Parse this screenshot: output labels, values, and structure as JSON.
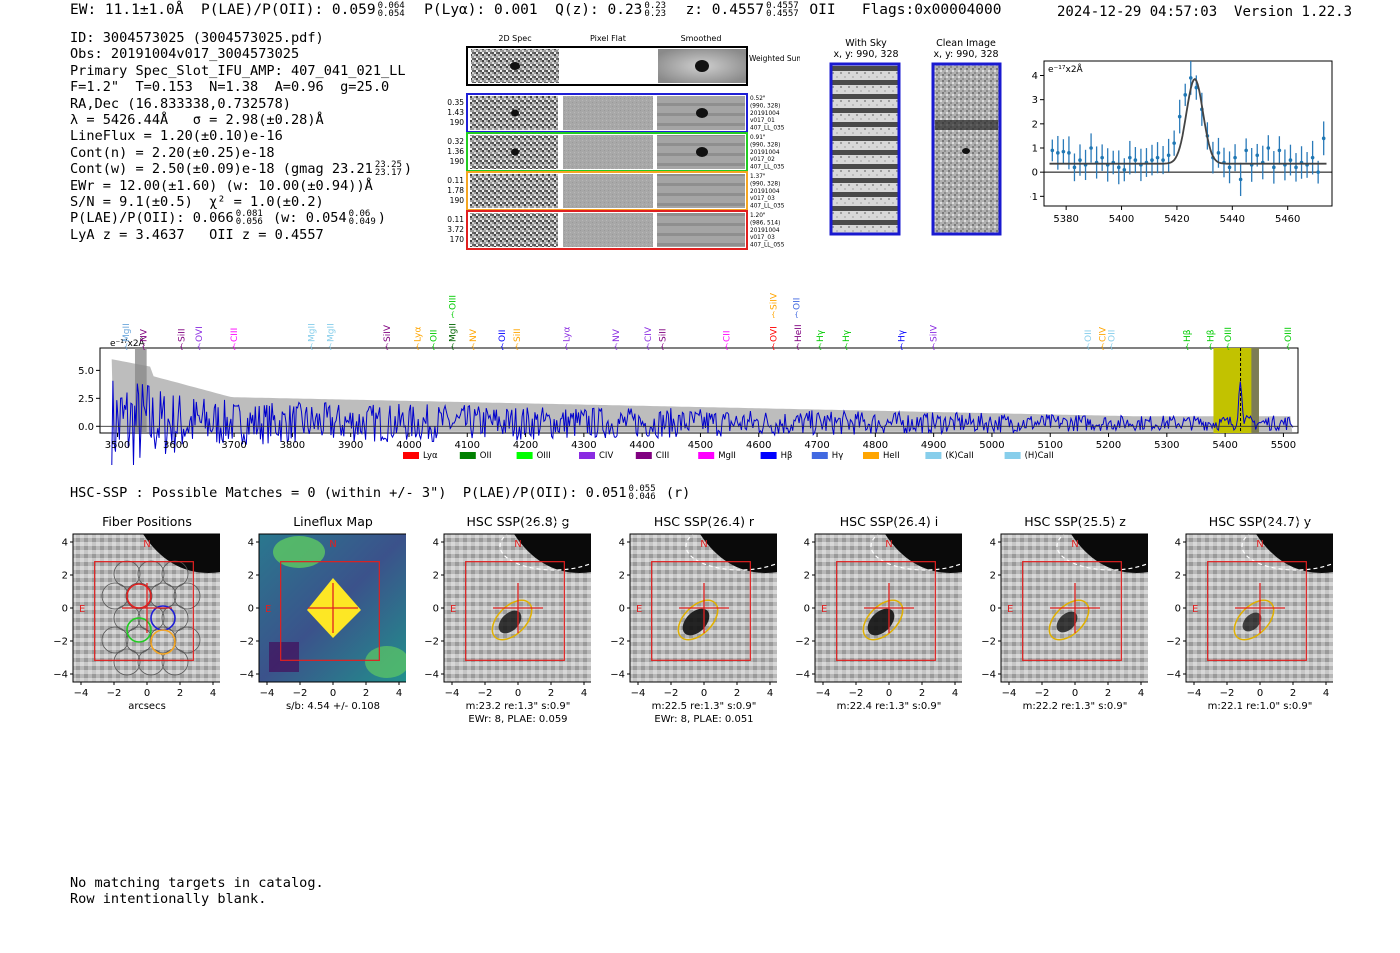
{
  "header": {
    "ew_label": "EW: 11.1±1.0Å",
    "plae_label": "P(LAE)/P(OII): 0.059",
    "plae_hi": "0.064",
    "plae_lo": "0.054",
    "plya_label": "P(Lyα): 0.001",
    "qz_label": "Q(z): 0.23",
    "qz_hi": "0.23",
    "qz_lo": "0.23",
    "z_label": "z: 0.4557",
    "z_hi": "0.4557",
    "z_lo": "0.4557",
    "z_line": "OII",
    "flags": "Flags:0x00004000",
    "datetime": "2024-12-29 04:57:03",
    "version": "Version 1.22.3"
  },
  "info": {
    "id": "ID: 3004573025 (3004573025.pdf)",
    "obs": "Obs: 20191004v017_3004573025",
    "primary": "Primary Spec_Slot_IFU_AMP: 407_041_021_LL",
    "params": "F=1.2\"  T=0.153  N=1.38  A=0.96  g=25.0",
    "radec": "RA,Dec (16.833338,0.732578)",
    "lambda": "λ = 5426.44Å   σ = 2.98(±0.28)Å",
    "lineflux": "LineFlux = 1.20(±0.10)e-16",
    "contn": "Cont(n) = 2.20(±0.25)e-18",
    "contw": "Cont(w) = 2.50(±0.09)e-18 (gmag 23.21",
    "contw_hi": "23.25",
    "contw_lo": "23.17",
    "ewr": "EWr = 12.00(±1.60) (w: 10.00(±0.94))Å",
    "sn": "S/N = 9.1(±0.5)  χ² = 1.0(±0.2)",
    "plae": "P(LAE)/P(OII): 0.066",
    "plae_hi": "0.081",
    "plae_lo": "0.056",
    "plae_w": "(w: 0.054",
    "plae_w_hi": "0.06",
    "plae_w_lo": "0.049",
    "lya": "LyA z = 3.4637   OII z = 0.4557"
  },
  "cutouts": {
    "col_titles": [
      "2D Spec",
      "Pixel Flat",
      "Smoothed"
    ],
    "weighted_label": "Weighted Sum",
    "rows": [
      {
        "left": [
          "0.35",
          "1.43",
          "190"
        ],
        "right": [
          "0.52\"",
          "(990, 328)",
          "20191004",
          "v017_01",
          "407_LL_035"
        ],
        "color": "#1f1fd6"
      },
      {
        "left": [
          "0.32",
          "1.36",
          "190"
        ],
        "right": [
          "0.91\"",
          "(990, 328)",
          "20191004",
          "v017_02",
          "407_LL_035"
        ],
        "color": "#22cc22"
      },
      {
        "left": [
          "0.11",
          "1.78",
          "190"
        ],
        "right": [
          "1.37\"",
          "(990, 328)",
          "20191004",
          "v017_03",
          "407_LL_035"
        ],
        "color": "#f5a623"
      },
      {
        "left": [
          "0.11",
          "3.72",
          "170"
        ],
        "right": [
          "1.20\"",
          "(986, 514)",
          "20191004",
          "v017_03",
          "407_LL_055"
        ],
        "color": "#e02020"
      }
    ]
  },
  "sky": {
    "with_sky_title": "With Sky",
    "with_sky_coords": "x, y: 990, 328",
    "clean_title": "Clean Image",
    "clean_coords": "x, y: 990, 328"
  },
  "chart_data": [
    {
      "type": "line",
      "title": "",
      "ylabel_note": "e⁻¹⁷x2Å",
      "xlim": [
        5372,
        5476
      ],
      "ylim": [
        -1.4,
        4.6
      ],
      "xticks": [
        5380,
        5400,
        5420,
        5440,
        5460
      ],
      "yticks": [
        -1,
        0,
        1,
        2,
        3,
        4
      ],
      "fit": {
        "center": 5426.44,
        "sigma": 2.98,
        "amplitude": 3.5,
        "continuum": 0.35
      },
      "points": [
        [
          5375,
          0.9
        ],
        [
          5377,
          0.8
        ],
        [
          5379,
          0.85
        ],
        [
          5381,
          0.8
        ],
        [
          5383,
          0.2
        ],
        [
          5385,
          0.5
        ],
        [
          5387,
          0.3
        ],
        [
          5389,
          1.0
        ],
        [
          5391,
          0.4
        ],
        [
          5393,
          0.6
        ],
        [
          5395,
          0.3
        ],
        [
          5397,
          0.4
        ],
        [
          5399,
          0.2
        ],
        [
          5401,
          0.1
        ],
        [
          5403,
          0.6
        ],
        [
          5405,
          0.5
        ],
        [
          5407,
          0.3
        ],
        [
          5409,
          0.4
        ],
        [
          5411,
          0.5
        ],
        [
          5413,
          0.6
        ],
        [
          5415,
          0.5
        ],
        [
          5417,
          0.7
        ],
        [
          5419,
          1.2
        ],
        [
          5421,
          2.3
        ],
        [
          5423,
          3.2
        ],
        [
          5425,
          3.9
        ],
        [
          5427,
          3.5
        ],
        [
          5429,
          2.6
        ],
        [
          5431,
          1.5
        ],
        [
          5433,
          0.6
        ],
        [
          5435,
          0.8
        ],
        [
          5437,
          0.4
        ],
        [
          5439,
          0.2
        ],
        [
          5441,
          0.6
        ],
        [
          5443,
          -0.3
        ],
        [
          5445,
          0.9
        ],
        [
          5447,
          0.3
        ],
        [
          5449,
          0.7
        ],
        [
          5451,
          0.4
        ],
        [
          5453,
          1.0
        ],
        [
          5455,
          0.2
        ],
        [
          5457,
          0.9
        ],
        [
          5459,
          0.3
        ],
        [
          5461,
          0.5
        ],
        [
          5463,
          0.2
        ],
        [
          5465,
          0.4
        ],
        [
          5467,
          0.3
        ],
        [
          5469,
          0.6
        ],
        [
          5471,
          0.0
        ],
        [
          5473,
          1.4
        ]
      ]
    },
    {
      "type": "line",
      "title": "",
      "ylabel_note": "e⁻¹⁷x2Å",
      "xlim": [
        3470,
        5525
      ],
      "ylim": [
        -0.6,
        7.0
      ],
      "xticks": [
        3500,
        3600,
        3700,
        3800,
        3900,
        4000,
        4100,
        4200,
        4300,
        4400,
        4500,
        4600,
        4700,
        4800,
        4900,
        5000,
        5100,
        5200,
        5300,
        5400,
        5500
      ],
      "yticks": [
        0.0,
        2.5,
        5.0
      ],
      "highlight_band": [
        5380,
        5458
      ],
      "marker_line": 5426.44,
      "legend": [
        {
          "label": "Lyα",
          "color": "#ff0000"
        },
        {
          "label": "OII",
          "color": "#008000"
        },
        {
          "label": "OIII",
          "color": "#00ff00"
        },
        {
          "label": "CIV",
          "color": "#8a2be2"
        },
        {
          "label": "CIII",
          "color": "#800080"
        },
        {
          "label": "MgII",
          "color": "#ff00ff"
        },
        {
          "label": "Hβ",
          "color": "#0000ff"
        },
        {
          "label": "Hγ",
          "color": "#4169e1"
        },
        {
          "label": "HeII",
          "color": "#ffa500"
        },
        {
          "label": "(K)CaII",
          "color": "#87ceeb"
        },
        {
          "label": "(H)CaII",
          "color": "#87ceeb"
        }
      ],
      "line_markers": [
        {
          "label": "MgII",
          "x": 3515,
          "color": "#6fa8dc",
          "row": 0
        },
        {
          "label": "NV",
          "x": 3545,
          "color": "#800080",
          "row": 0
        },
        {
          "label": "SiII",
          "x": 3610,
          "color": "#800080",
          "row": 0
        },
        {
          "label": "OVI",
          "x": 3640,
          "color": "#8a2be2",
          "row": 0
        },
        {
          "label": "CIII",
          "x": 3700,
          "color": "#ff00ff",
          "row": 0
        },
        {
          "label": "MgII",
          "x": 3833,
          "color": "#87ceeb",
          "row": 0
        },
        {
          "label": "MgII",
          "x": 3865,
          "color": "#87ceeb",
          "row": 0
        },
        {
          "label": "SiIV",
          "x": 3962,
          "color": "#800080",
          "row": 0
        },
        {
          "label": "Lyα",
          "x": 4015,
          "color": "#ffa500",
          "row": 0
        },
        {
          "label": "OII",
          "x": 4042,
          "color": "#00cc00",
          "row": 0
        },
        {
          "label": "MgII",
          "x": 4075,
          "color": "#006400",
          "row": 0
        },
        {
          "label": "OIII",
          "x": 4075,
          "color": "#00cc00",
          "row": 1
        },
        {
          "label": "NV",
          "x": 4110,
          "color": "#ffa500",
          "row": 0
        },
        {
          "label": "OII",
          "x": 4160,
          "color": "#0000ff",
          "row": 0
        },
        {
          "label": "SiII",
          "x": 4185,
          "color": "#ffa500",
          "row": 0
        },
        {
          "label": "Lyα",
          "x": 4270,
          "color": "#8a2be2",
          "row": 0
        },
        {
          "label": "NV",
          "x": 4355,
          "color": "#8a2be2",
          "row": 0
        },
        {
          "label": "CIV",
          "x": 4410,
          "color": "#8a2be2",
          "row": 0
        },
        {
          "label": "SiII",
          "x": 4435,
          "color": "#800080",
          "row": 0
        },
        {
          "label": "CII",
          "x": 4545,
          "color": "#ff00ff",
          "row": 0
        },
        {
          "label": "OVI",
          "x": 4625,
          "color": "#ff0000",
          "row": 0
        },
        {
          "label": "SiIV",
          "x": 4625,
          "color": "#ffa500",
          "row": 1
        },
        {
          "label": "OII",
          "x": 4665,
          "color": "#4169e1",
          "row": 1
        },
        {
          "label": "HeII",
          "x": 4667,
          "color": "#800080",
          "row": 0
        },
        {
          "label": "Hγ",
          "x": 4705,
          "color": "#00cc00",
          "row": 0
        },
        {
          "label": "Hγ",
          "x": 4750,
          "color": "#00cc00",
          "row": 0
        },
        {
          "label": "Hγ",
          "x": 4845,
          "color": "#0000ff",
          "row": 0
        },
        {
          "label": "SiIV",
          "x": 4900,
          "color": "#8a2be2",
          "row": 0
        },
        {
          "label": "OII",
          "x": 5165,
          "color": "#87ceeb",
          "row": 0
        },
        {
          "label": "CIV",
          "x": 5190,
          "color": "#ffa500",
          "row": 0
        },
        {
          "label": "OII",
          "x": 5205,
          "color": "#87ceeb",
          "row": 0
        },
        {
          "label": "Hβ",
          "x": 5335,
          "color": "#00cc00",
          "row": 0
        },
        {
          "label": "Hβ",
          "x": 5375,
          "color": "#00cc00",
          "row": 0
        },
        {
          "label": "OIII",
          "x": 5405,
          "color": "#00cc00",
          "row": 0
        },
        {
          "label": "OIII",
          "x": 5508,
          "color": "#00cc00",
          "row": 0
        }
      ]
    }
  ],
  "hsc": {
    "summary": "HSC-SSP : Possible Matches = 0 (within +/- 3\")  P(LAE)/P(OII): 0.051",
    "summary_hi": "0.055",
    "summary_lo": "0.046",
    "summary_band": "(r)"
  },
  "panels": [
    {
      "title": "Fiber Positions",
      "caption1": "arcsecs",
      "caption2": "",
      "kind": "fiber"
    },
    {
      "title": "Lineflux Map",
      "caption1": "s/b: 4.54 +/- 0.108",
      "caption2": "",
      "kind": "flux"
    },
    {
      "title": "HSC SSP(26.8) g",
      "caption1": "m:23.2  re:1.3\"  s:0.9\"",
      "caption2": "EWr: 8, PLAE: 0.059",
      "kind": "image",
      "blob": 0.8
    },
    {
      "title": "HSC SSP(26.4) r",
      "caption1": "m:22.5  re:1.3\"  s:0.9\"",
      "caption2": "EWr: 8, PLAE: 0.051",
      "kind": "image",
      "blob": 1.0
    },
    {
      "title": "HSC SSP(26.4) i",
      "caption1": "m:22.4  re:1.3\"  s:0.9\"",
      "caption2": "",
      "kind": "image",
      "blob": 1.0
    },
    {
      "title": "HSC SSP(25.5) z",
      "caption1": "m:22.2  re:1.3\"  s:0.9\"",
      "caption2": "",
      "kind": "image",
      "blob": 0.7
    },
    {
      "title": "HSC SSP(24.7) y",
      "caption1": "m:22.1  re:1.0\"  s:0.9\"",
      "caption2": "",
      "kind": "image",
      "blob": 0.6
    }
  ],
  "panel_axes": {
    "ticks": [
      "−4",
      "−2",
      "0",
      "2",
      "4"
    ],
    "north": "N",
    "east": "E"
  },
  "catalog": {
    "line1": "No matching targets in catalog.",
    "line2": "Row intentionally blank."
  }
}
